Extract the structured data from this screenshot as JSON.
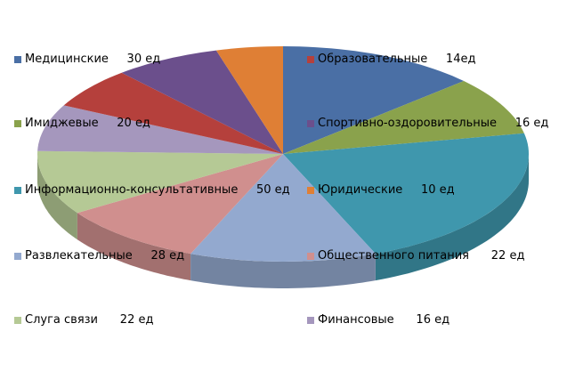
{
  "chart_data": {
    "type": "pie",
    "title": "",
    "series": [
      {
        "label": "Медицинские     30 ед",
        "value": 30,
        "color": "#4a6fa5"
      },
      {
        "label": "Образовательные     14ед",
        "value": 14,
        "color": "#b5403c"
      },
      {
        "label": "Имиджевые     20 ед",
        "value": 20,
        "color": "#8aa24c"
      },
      {
        "label": "Спортивно-оздоровительные     16 ед",
        "value": 16,
        "color": "#6b4f8c"
      },
      {
        "label": "Информационно-консультативные     50 ед",
        "value": 50,
        "color": "#3f97ad"
      },
      {
        "label": "Юридические     10 ед",
        "value": 10,
        "color": "#df7f35"
      },
      {
        "label": "Развлекательные     28 ед",
        "value": 28,
        "color": "#93a9cf"
      },
      {
        "label": "Общественного питания      22 ед",
        "value": 22,
        "color": "#d08f8e"
      },
      {
        "label": "Слуга связи      22 ед",
        "value": 22,
        "color": "#b5c995"
      },
      {
        "label": "Финансовые      16 ед",
        "value": 16,
        "color": "#a597bd"
      }
    ],
    "slice_order": [
      1,
      3,
      5,
      7,
      8,
      9,
      10,
      2,
      4,
      6
    ],
    "legend_position": "overlay, two columns"
  }
}
